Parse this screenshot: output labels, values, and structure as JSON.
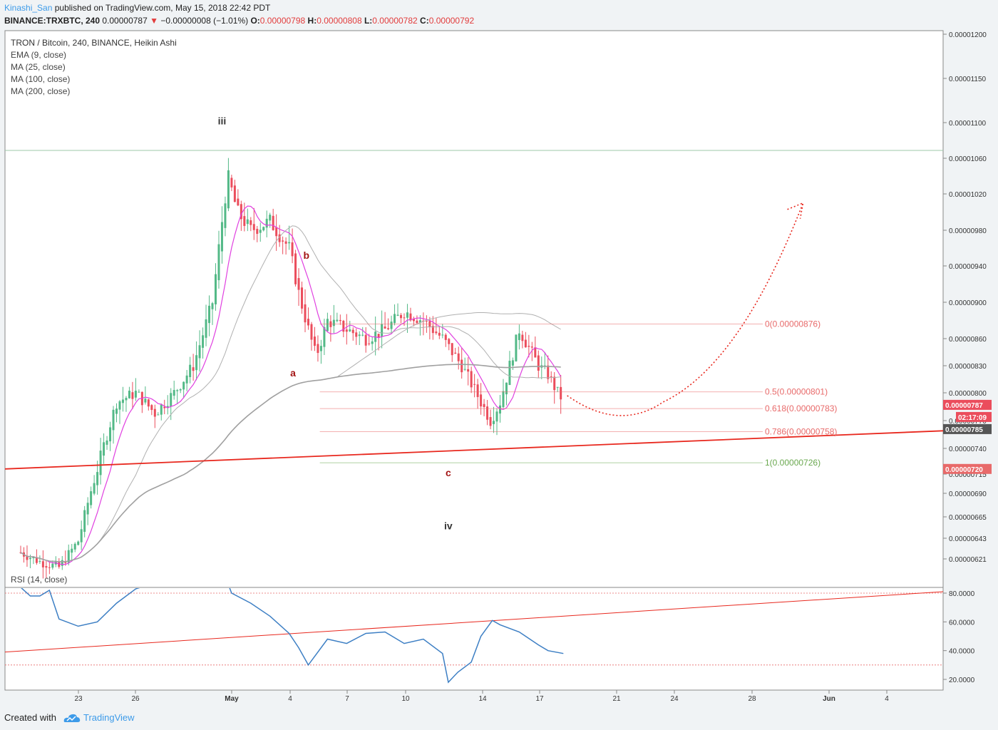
{
  "header": {
    "author": "Kinashi_San",
    "published": "published on TradingView.com, May 15, 2018 22:42 PDT",
    "symbol": "BINANCE:TRXBTC, 240",
    "price": "0.00000787",
    "change_arrow": "▼",
    "change": "−0.00000008 (−1.01%)",
    "o_label": "O:",
    "o": "0.00000798",
    "h_label": "H:",
    "h": "0.00000808",
    "l_label": "L:",
    "l": "0.00000782",
    "c_label": "C:",
    "c": "0.00000792"
  },
  "footer": {
    "created_with": "Created with",
    "brand": "TradingView"
  },
  "colors": {
    "up": "#53b987",
    "down": "#eb4d5c",
    "ema": "#e040e0",
    "ma": "#b0b0b0",
    "trend": "#e8281e",
    "rsi": "#3d7fc4",
    "fib_red": "#e86a6a",
    "fib_green": "#6aa84f"
  },
  "chart_data": [
    {
      "type": "candlestick",
      "title": "TRON / Bitcoin, 240, BINANCE, Heikin Ashi",
      "indicators": [
        "EMA (9, close)",
        "MA (25, close)",
        "MA (100, close)",
        "MA (200, close)"
      ],
      "y_ticks": [
        "0.00001200",
        "0.00001150",
        "0.00001100",
        "0.00001060",
        "0.00001020",
        "0.00000980",
        "0.00000940",
        "0.00000900",
        "0.00000860",
        "0.00000830",
        "0.00000800",
        "0.00000770",
        "0.00000740",
        "0.00000715",
        "0.00000690",
        "0.00000665",
        "0.00000643",
        "0.00000621"
      ],
      "x_ticks": [
        "23",
        "26",
        "May",
        "4",
        "7",
        "10",
        "14",
        "17",
        "21",
        "24",
        "28",
        "Jun",
        "4"
      ],
      "wave_labels": [
        {
          "text": "iii",
          "date": "Apr 30",
          "price": 1.098e-05
        },
        {
          "text": "b",
          "date": "May 3",
          "price": 9.48e-06
        },
        {
          "text": "a",
          "date": "May 4",
          "price": 8.18e-06
        },
        {
          "text": "c",
          "date": "May 12",
          "price": 7.12e-06
        },
        {
          "text": "iv",
          "date": "May 12",
          "price": 6.52e-06
        }
      ],
      "fibonacci": [
        {
          "label": "0(0.00000876)",
          "level": 0,
          "price": 8.76e-06
        },
        {
          "label": "0.5(0.00000801)",
          "level": 0.5,
          "price": 8.01e-06
        },
        {
          "label": "0.618(0.00000783)",
          "level": 0.618,
          "price": 7.83e-06
        },
        {
          "label": "0.786(0.00000758)",
          "level": 0.786,
          "price": 7.58e-06
        },
        {
          "label": "1(0.00000726)",
          "level": 1,
          "price": 7.26e-06
        }
      ],
      "price_tags": [
        {
          "text": "0.00000787",
          "kind": "last"
        },
        {
          "text": "02:17:09",
          "kind": "countdown"
        },
        {
          "text": "0.00000785",
          "kind": "ma"
        },
        {
          "text": "0.00000720",
          "kind": "trendline"
        }
      ],
      "trendline": {
        "from": {
          "date": "Apr 19",
          "price": 7.2e-06
        },
        "to": {
          "date": "Jun 7",
          "price": 7.59e-06
        }
      },
      "projection": "dotted path from May 16 low towards ~0.00001010 around Jun 1",
      "candles_summary": "Heikin Ashi 4h candles: rally from ~0.00000620 (Apr 22) to peak ~0.00001080 (Apr 30), decline to ~0.00000830 (May 4), bounce to ~0.00000895 (May 8), decline to low ~0.00000726 (May 12), bounce to ~0.00000870 (May 13), last ~0.00000787 (May 15)"
    },
    {
      "type": "line",
      "title": "RSI (14, close)",
      "y_ticks": [
        "80.0000",
        "60.0000",
        "40.0000",
        "20.0000"
      ],
      "bands": [
        30,
        80
      ],
      "trendline": {
        "from": {
          "date": "Apr 19",
          "value": 39
        },
        "to": {
          "date": "Jun 7",
          "value": 81
        }
      }
    }
  ]
}
